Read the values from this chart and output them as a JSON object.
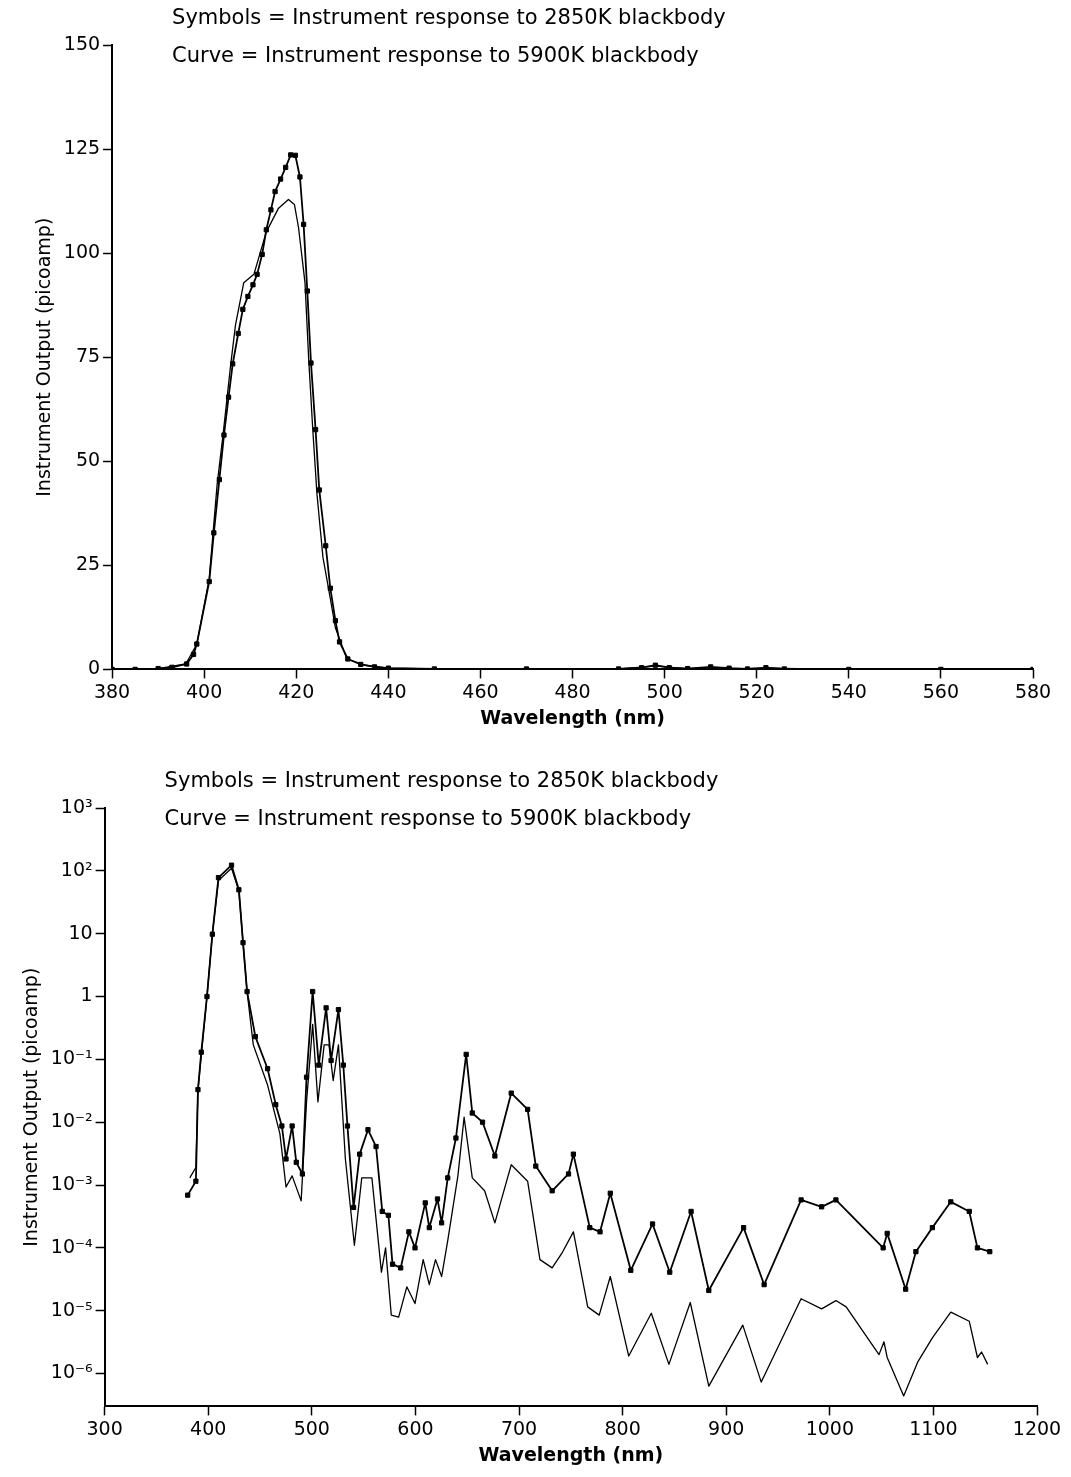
{
  "chart_data": [
    {
      "type": "line",
      "xlabel": "Wavelength (nm)",
      "ylabel": "Instrument Output (picoamp)",
      "annotations": [
        "Symbols = Instrument response to 2850K blackbody",
        "Curve = Instrument response to 5900K blackbody"
      ],
      "xlim": [
        380,
        580
      ],
      "xticks": [
        380,
        400,
        420,
        440,
        460,
        480,
        500,
        520,
        540,
        560,
        580
      ],
      "ylim": [
        0,
        150
      ],
      "yticks": [
        0,
        25,
        50,
        75,
        100,
        125,
        150
      ],
      "grid": false,
      "legend": false,
      "line_style": "solid",
      "series": [
        {
          "color": "#000000",
          "marker": "square",
          "x": [
            380,
            385,
            390,
            393,
            396.2,
            397.7,
            398.4,
            401.1,
            402.1,
            403.3,
            404.3,
            405.3,
            406.2,
            407.4,
            408.4,
            409.5,
            410.6,
            411.5,
            412.6,
            413.5,
            414.5,
            415.4,
            416.6,
            417.7,
            418.8,
            419.8,
            420.8,
            421.6,
            422.4,
            423.2,
            424.2,
            425.0,
            426.4,
            427.4,
            428.5,
            429.4,
            431.2,
            434,
            437,
            440,
            450,
            470,
            490,
            495,
            498,
            501,
            505,
            510,
            514,
            518,
            522,
            526,
            540,
            560,
            580
          ],
          "values": [
            0,
            0,
            0.2,
            0.5,
            1.3,
            3.6,
            6.1,
            21.1,
            32.8,
            45.6,
            56.3,
            65.4,
            73.4,
            80.7,
            86.5,
            89.6,
            92.4,
            94.9,
            99.7,
            105.6,
            110.4,
            114.8,
            117.8,
            120.6,
            123.6,
            123.5,
            118.3,
            106.9,
            90.9,
            73.6,
            57.6,
            43.1,
            29.7,
            19.5,
            11.7,
            6.6,
            2.5,
            1.2,
            0.6,
            0.3,
            0.1,
            0.1,
            0.1,
            0.4,
            1.0,
            0.4,
            0.2,
            0.6,
            0.3,
            0.1,
            0.4,
            0.1,
            0,
            0,
            0
          ]
        },
        {
          "color": "#000000",
          "marker": "none",
          "x": [
            380,
            390,
            396,
            398.4,
            401.1,
            402.8,
            404.2,
            405.7,
            406.8,
            408.6,
            410.8,
            413.5,
            416.1,
            418.3,
            419.6,
            420.5,
            421.9,
            422.7,
            423.6,
            424.5,
            425.8,
            427.4,
            428.5,
            431,
            435,
            440,
            450,
            490,
            498,
            505,
            510,
            516,
            522,
            540,
            580
          ],
          "values": [
            0,
            0.2,
            1.3,
            6,
            21.8,
            44.2,
            57.4,
            72.6,
            82.7,
            92.9,
            94.9,
            105.1,
            110.7,
            112.9,
            111.7,
            106.1,
            92.9,
            74.6,
            57.4,
            42.1,
            26.9,
            17,
            10,
            2.5,
            1,
            0.3,
            0.1,
            0.1,
            0.8,
            0.2,
            0.5,
            0.1,
            0.3,
            0,
            0
          ]
        }
      ]
    },
    {
      "type": "line",
      "xlabel": "Wavelength (nm)",
      "ylabel": "Instrument Output (picoamp)",
      "log": "y",
      "annotations": [
        "Symbols = Instrument response to 2850K blackbody",
        "Curve = Instrument response to 5900K blackbody"
      ],
      "xlim": [
        300,
        1200
      ],
      "xticks": [
        300,
        400,
        500,
        600,
        700,
        800,
        900,
        1000,
        1100,
        1200
      ],
      "ylim": [
        3e-07,
        1000
      ],
      "yticks": [
        {
          "value": 1000,
          "label": "10³"
        },
        {
          "value": 100,
          "label": "10²"
        },
        10,
        1,
        {
          "value": 0.1,
          "label": "10⁻¹"
        },
        {
          "value": 0.01,
          "label": "10⁻²"
        },
        {
          "value": 0.001,
          "label": "10⁻³"
        },
        {
          "value": 0.0001,
          "label": "10⁻⁴"
        },
        {
          "value": 1e-05,
          "label": "10⁻⁵"
        },
        {
          "value": 1e-06,
          "label": "10⁻⁶"
        }
      ],
      "grid": false,
      "legend": false,
      "line_style": "solid",
      "series": [
        {
          "color": "#000000",
          "marker": "square",
          "x": [
            380.2,
            388.1,
            390.1,
            393.3,
            398.8,
            404,
            409.9,
            422.5,
            429.6,
            433.6,
            437.5,
            445.5,
            457.3,
            465.2,
            471.1,
            475.1,
            481,
            485,
            490.9,
            494.9,
            500.8,
            506.7,
            513.8,
            518.6,
            525.7,
            530.4,
            534.4,
            540.3,
            546.2,
            554.2,
            562,
            568,
            573.9,
            577.9,
            585.8,
            593.7,
            599.6,
            609.5,
            613.4,
            621.3,
            625.3,
            631.2,
            639.1,
            649,
            654.9,
            664.8,
            676.7,
            692.5,
            708.3,
            716.2,
            732,
            747.8,
            752.5,
            768.3,
            778.2,
            788.1,
            807.9,
            828.9,
            845.5,
            866.1,
            883.2,
            916.8,
            936.6,
            972.3,
            992.1,
            1005.9,
            1051.5,
            1055.4,
            1073.2,
            1083.1,
            1099,
            1116.8,
            1134.6,
            1142.5,
            1154.4
          ],
          "values": [
            0.00069,
            0.00115,
            0.033,
            0.13,
            1.0,
            9.8,
            78,
            123,
            50,
            7.2,
            1.2,
            0.23,
            0.071,
            0.019,
            0.0087,
            0.0026,
            0.0087,
            0.0023,
            0.0015,
            0.052,
            1.2,
            0.081,
            0.66,
            0.096,
            0.62,
            0.081,
            0.0087,
            0.00044,
            0.0031,
            0.0076,
            0.0041,
            0.00038,
            0.00033,
            5.5e-05,
            4.8e-05,
            0.00018,
            0.0001,
            0.00052,
            0.00021,
            0.0006,
            0.00025,
            0.0013,
            0.0056,
            0.12,
            0.014,
            0.01,
            0.0029,
            0.029,
            0.016,
            0.002,
            0.00081,
            0.0015,
            0.0031,
            0.00021,
            0.00018,
            0.00074,
            4.4e-05,
            0.00024,
            4.1e-05,
            0.00038,
            2.1e-05,
            0.00021,
            2.6e-05,
            0.00058,
            0.00045,
            0.00058,
            0.0001,
            0.00017,
            2.2e-05,
            8.7e-05,
            0.00021,
            0.00054,
            0.00038,
            0.0001,
            8.7e-05
          ]
        },
        {
          "color": "#000000",
          "marker": "none",
          "x": [
            382.2,
            388.1,
            390.1,
            398.8,
            404,
            409.9,
            422.5,
            429.6,
            433.6,
            437.5,
            443.5,
            457.3,
            469.2,
            475.1,
            481,
            489.7,
            494.9,
            500.8,
            505.9,
            511.9,
            516.6,
            520.6,
            525.7,
            532.4,
            541.1,
            548.2,
            558,
            567.2,
            571.2,
            576.7,
            583.8,
            591.7,
            599.6,
            607.5,
            613.4,
            619.4,
            625.3,
            631.2,
            641,
            647,
            654.9,
            666.8,
            676.7,
            692.5,
            708.3,
            720.2,
            732,
            741.9,
            752.5,
            766.3,
            777.4,
            788.1,
            805.9,
            827.7,
            844.7,
            865.3,
            883.2,
            916,
            933.8,
            972.3,
            992.1,
            1005.9,
            1015.8,
            1047.5,
            1052.3,
            1055.4,
            1071.3,
            1085.1,
            1099,
            1116.8,
            1134.6,
            1142.5,
            1146.5,
            1152.4
          ],
          "values": [
            0.0013,
            0.0019,
            0.033,
            1.0,
            9.8,
            70,
            110,
            48,
            7.2,
            1.2,
            0.17,
            0.039,
            0.0065,
            0.00093,
            0.0014,
            0.00056,
            0.021,
            0.36,
            0.021,
            0.17,
            0.17,
            0.046,
            0.17,
            0.0026,
            0.00011,
            0.0013,
            0.0013,
            4.1e-05,
            0.0001,
            8.5e-06,
            7.9e-06,
            2.4e-05,
            1.3e-05,
            6.5e-05,
            2.6e-05,
            6.5e-05,
            3.5e-05,
            0.00013,
            0.0014,
            0.012,
            0.0013,
            0.00081,
            0.00025,
            0.0021,
            0.00115,
            6.5e-05,
            4.8e-05,
            8.5e-05,
            0.00018,
            1.15e-05,
            8.5e-06,
            3.5e-05,
            1.9e-06,
            9.1e-06,
            1.4e-06,
            1.35e-05,
            6.3e-07,
            5.9e-06,
            7.3e-07,
            1.55e-05,
            1.07e-05,
            1.45e-05,
            1.15e-05,
            2e-06,
            3.2e-06,
            1.8e-06,
            4.4e-07,
            1.55e-06,
            3.7e-06,
            9.5e-06,
            6.8e-06,
            1.8e-06,
            2.2e-06,
            1.4e-06
          ]
        }
      ]
    }
  ]
}
